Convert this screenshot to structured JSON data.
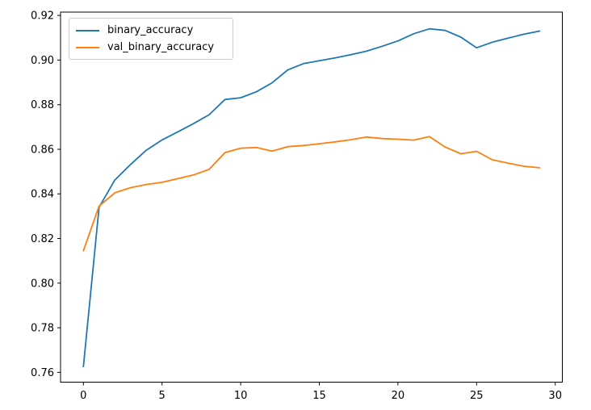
{
  "chart_data": {
    "type": "line",
    "title": "",
    "xlabel": "",
    "ylabel": "",
    "grid": false,
    "x": [
      0,
      1,
      2,
      3,
      4,
      5,
      6,
      7,
      8,
      9,
      10,
      11,
      12,
      13,
      14,
      15,
      16,
      17,
      18,
      19,
      20,
      21,
      22,
      23,
      24,
      25,
      26,
      27,
      28,
      29
    ],
    "series": [
      {
        "name": "binary_accuracy",
        "color": "#1f77b4",
        "values": [
          0.7626,
          0.834,
          0.8462,
          0.8532,
          0.8596,
          0.8642,
          0.8678,
          0.8715,
          0.8755,
          0.8823,
          0.8831,
          0.8858,
          0.8898,
          0.8956,
          0.8984,
          0.8997,
          0.901,
          0.9024,
          0.904,
          0.9062,
          0.9086,
          0.9118,
          0.914,
          0.9133,
          0.9103,
          0.9055,
          0.908,
          0.9098,
          0.9116,
          0.913
        ]
      },
      {
        "name": "val_binary_accuracy",
        "color": "#ff7f0e",
        "values": [
          0.8145,
          0.8345,
          0.8405,
          0.8428,
          0.8442,
          0.8452,
          0.8468,
          0.8485,
          0.851,
          0.8585,
          0.8605,
          0.8608,
          0.8592,
          0.8612,
          0.8617,
          0.8625,
          0.8633,
          0.8643,
          0.8655,
          0.8648,
          0.8645,
          0.8641,
          0.8657,
          0.861,
          0.858,
          0.8591,
          0.8553,
          0.8538,
          0.8524,
          0.8517
        ]
      }
    ],
    "xlim": [
      -1.45,
      30.45
    ],
    "ylim": [
      0.7556,
      0.9215
    ],
    "xticks": {
      "values": [
        0,
        5,
        10,
        15,
        20,
        25,
        30
      ],
      "labels": [
        "0",
        "5",
        "10",
        "15",
        "20",
        "25",
        "30"
      ]
    },
    "yticks": {
      "values": [
        0.76,
        0.78,
        0.8,
        0.82,
        0.84,
        0.86,
        0.88,
        0.9,
        0.92
      ],
      "labels": [
        "0.76",
        "0.78",
        "0.80",
        "0.82",
        "0.84",
        "0.86",
        "0.88",
        "0.90",
        "0.92"
      ]
    },
    "legend": {
      "location": "upper left",
      "entries": [
        "binary_accuracy",
        "val_binary_accuracy"
      ]
    },
    "line_width": 1.8,
    "frame_color": "#000000",
    "background_color": "#ffffff"
  }
}
